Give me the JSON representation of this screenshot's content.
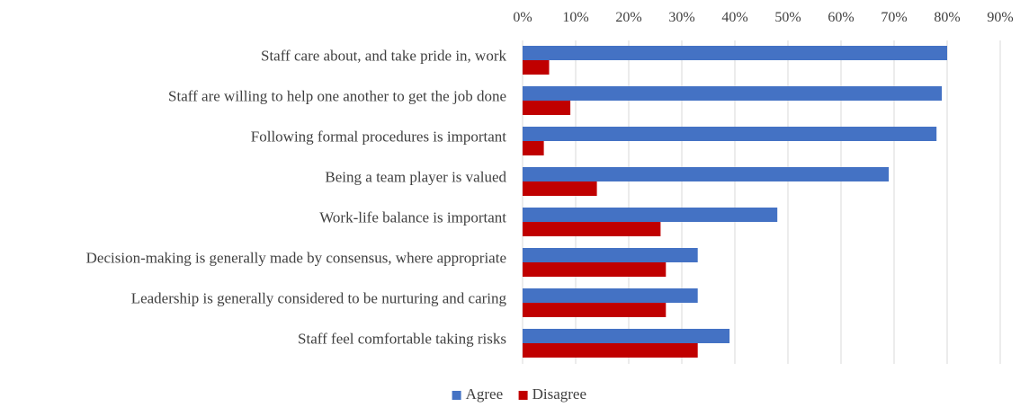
{
  "chart_data": {
    "type": "bar",
    "orientation": "horizontal",
    "title": "",
    "xlabel": "",
    "ylabel": "",
    "categories": [
      "Staff care about, and take pride in, work",
      "Staff are willing to help one another to get the job done",
      "Following formal procedures is important",
      "Being a team player is valued",
      "Work-life balance is important",
      "Decision-making is generally made by consensus, where appropriate",
      "Leadership is generally considered to be nurturing and caring",
      "Staff feel comfortable taking risks"
    ],
    "series": [
      {
        "name": "Agree",
        "color": "#4472c4",
        "values": [
          80,
          79,
          78,
          69,
          48,
          33,
          33,
          39
        ]
      },
      {
        "name": "Disagree",
        "color": "#c00000",
        "values": [
          5,
          9,
          4,
          14,
          26,
          27,
          27,
          33
        ]
      }
    ],
    "xlim": [
      0,
      90
    ],
    "xticks": [
      "0%",
      "10%",
      "20%",
      "30%",
      "40%",
      "50%",
      "60%",
      "70%",
      "80%",
      "90%"
    ],
    "axis_position": "top",
    "grid": true,
    "legend": "bottom"
  }
}
